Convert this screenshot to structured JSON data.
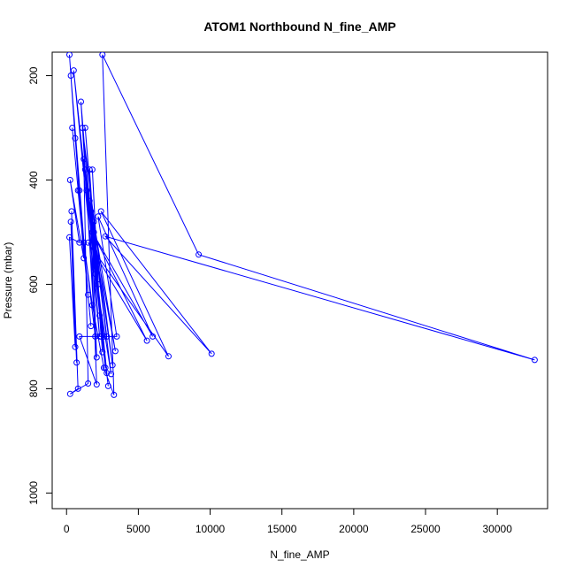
{
  "chart_data": {
    "type": "line",
    "title": "ATOM1 Northbound N_fine_AMP",
    "xlabel": "N_fine_AMP",
    "ylabel": "Pressure (mbar)",
    "xlim": [
      -1000,
      33500
    ],
    "ylim": [
      1030,
      155
    ],
    "y_reversed": true,
    "grid": false,
    "legend": "none",
    "series_color": "#0000ff",
    "xticks": [
      0,
      5000,
      10000,
      15000,
      20000,
      25000,
      30000
    ],
    "xtick_labels": [
      "0",
      "5000",
      "10000",
      "15000",
      "20000",
      "25000",
      "30000"
    ],
    "yticks": [
      200,
      400,
      600,
      800,
      1000
    ],
    "ytick_labels": [
      "200",
      "400",
      "600",
      "800",
      "1000"
    ],
    "series": [
      {
        "points": [
          [
            200,
            160
          ],
          [
            600,
            320
          ],
          [
            900,
            420
          ],
          [
            1200,
            520
          ],
          [
            1800,
            640
          ],
          [
            2600,
            760
          ],
          [
            3300,
            812
          ],
          [
            2500,
            160
          ],
          [
            9200,
            543
          ],
          [
            32600,
            745
          ],
          [
            2700,
            508
          ],
          [
            10100,
            733
          ],
          [
            2400,
            460
          ],
          [
            7100,
            738
          ],
          [
            1500,
            520
          ],
          [
            5600,
            708
          ],
          [
            1800,
            500
          ],
          [
            6000,
            700
          ],
          [
            2200,
            470
          ],
          [
            3500,
            700
          ],
          [
            900,
            700
          ],
          [
            2100,
            792
          ],
          [
            1600,
            440
          ],
          [
            2900,
            795
          ],
          [
            2000,
            580
          ],
          [
            3100,
            772
          ],
          [
            1700,
            460
          ],
          [
            3200,
            755
          ],
          [
            1100,
            300
          ],
          [
            2800,
            770
          ],
          [
            1300,
            380
          ],
          [
            2700,
            760
          ],
          [
            500,
            190
          ],
          [
            2300,
            700
          ],
          [
            1000,
            250
          ],
          [
            2000,
            700
          ],
          [
            800,
            420
          ],
          [
            1700,
            680
          ],
          [
            400,
            300
          ],
          [
            1500,
            620
          ],
          [
            300,
            200
          ],
          [
            1200,
            550
          ],
          [
            250,
            400
          ],
          [
            900,
            520
          ],
          [
            200,
            510
          ],
          [
            600,
            720
          ],
          [
            300,
            480
          ],
          [
            700,
            750
          ],
          [
            350,
            460
          ],
          [
            800,
            800
          ],
          [
            250,
            810
          ],
          [
            1500,
            790
          ],
          [
            1200,
            360
          ],
          [
            2600,
            700
          ],
          [
            1400,
            420
          ],
          [
            2100,
            740
          ],
          [
            1600,
            380
          ],
          [
            2300,
            660
          ],
          [
            1900,
            500
          ],
          [
            2500,
            730
          ],
          [
            1300,
            300
          ],
          [
            2200,
            600
          ],
          [
            1800,
            380
          ],
          [
            2400,
            700
          ],
          [
            1900,
            480
          ],
          [
            3400,
            728
          ],
          [
            2000,
            520
          ],
          [
            2800,
            700
          ]
        ]
      }
    ]
  }
}
